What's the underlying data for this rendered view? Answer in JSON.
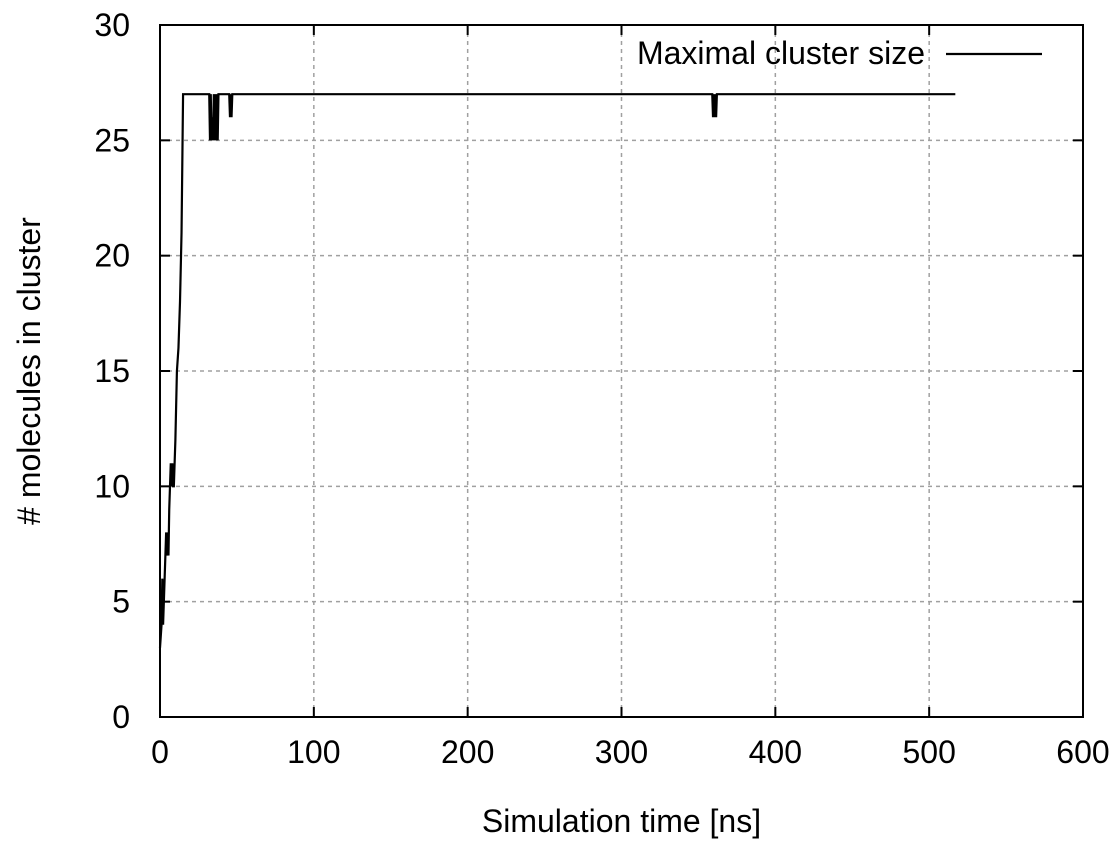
{
  "chart_data": {
    "type": "line",
    "title": "",
    "xlabel": "Simulation time [ns]",
    "ylabel": "# molecules in cluster",
    "xlim": [
      0,
      600
    ],
    "ylim": [
      0,
      30
    ],
    "xticks": [
      0,
      100,
      200,
      300,
      400,
      500,
      600
    ],
    "yticks": [
      0,
      5,
      10,
      15,
      20,
      25,
      30
    ],
    "grid": true,
    "legend_position": "top-right",
    "series": [
      {
        "name": "Maximal cluster size",
        "color": "#000000",
        "x": [
          0,
          1,
          1.5,
          2,
          2.5,
          3,
          4,
          4.5,
          5,
          5.5,
          6,
          7,
          7.5,
          8,
          8.5,
          9,
          10,
          11,
          12,
          13,
          14,
          15,
          16,
          32,
          32.5,
          33,
          33.5,
          34,
          34.5,
          35,
          35.5,
          36,
          36.5,
          37,
          37.5,
          38,
          45,
          45.5,
          46,
          46.5,
          47,
          359,
          359.5,
          360,
          360.5,
          361,
          361.5,
          362,
          517
        ],
        "y": [
          3,
          4,
          6,
          4,
          5,
          6,
          8,
          7,
          8,
          7,
          9,
          11,
          10,
          11,
          10,
          10,
          12,
          15,
          16,
          18,
          21,
          27,
          27,
          27,
          25,
          27,
          25,
          26,
          25,
          27,
          25,
          27,
          25,
          27,
          25,
          27,
          27,
          26,
          27,
          26,
          27,
          27,
          26,
          27,
          26,
          27,
          26,
          27,
          27
        ]
      }
    ]
  }
}
